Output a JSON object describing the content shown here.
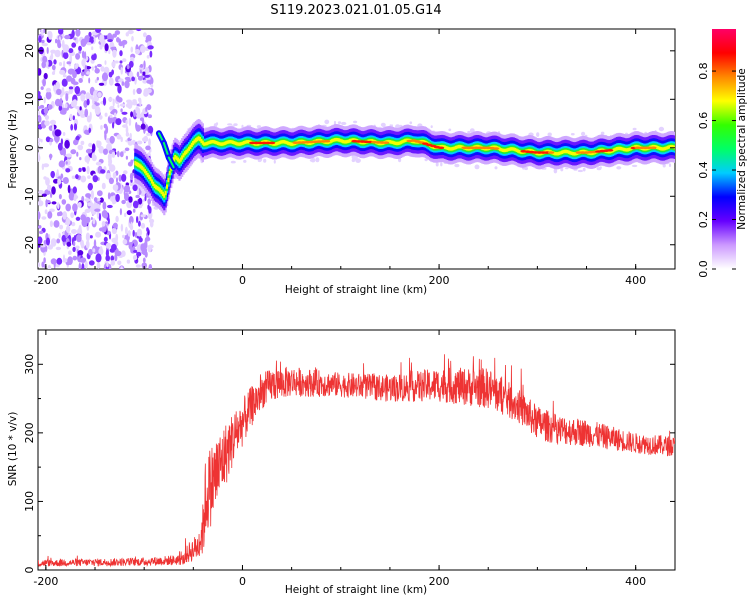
{
  "title": "S119.2023.021.01.05.G14",
  "chart_data": [
    {
      "type": "heatmap",
      "xlabel": "Height of straight line (km)",
      "ylabel": "Frequency (Hz)",
      "xlim": [
        -208,
        440
      ],
      "ylim": [
        -25,
        24.5
      ],
      "x_ticks": [
        -200,
        0,
        200,
        400
      ],
      "y_ticks": [
        -20,
        -10,
        0,
        10,
        20
      ],
      "colorbar": {
        "label": "Normalized spectral amplitude",
        "range": [
          0,
          0.97
        ],
        "ticks": [
          0.0,
          0.2,
          0.4,
          0.6,
          0.8
        ],
        "colormap": [
          "#ffffff",
          "#cc99ff",
          "#6600ff",
          "#0000ff",
          "#00ccff",
          "#00ff66",
          "#33ff00",
          "#ffff00",
          "#ff8800",
          "#ff0000",
          "#ff0066"
        ]
      },
      "noise_region_x": [
        -208,
        -100
      ],
      "ridge": {
        "x": [
          -110,
          -100,
          -95,
          -90,
          -85,
          -80,
          -75,
          -70,
          -65,
          -60,
          -55,
          -50,
          -45,
          -40,
          -30,
          0,
          50,
          100,
          150,
          175,
          200,
          250,
          300,
          350,
          400,
          440
        ],
        "freq": [
          -3,
          -5,
          -6,
          -8,
          -9,
          -10,
          -5,
          -2,
          -3,
          -1,
          0,
          1,
          2,
          1,
          1,
          1,
          1,
          1.5,
          1,
          1.5,
          0,
          0,
          -1,
          -1,
          0,
          0
        ]
      },
      "early_branch": {
        "x": [
          -85,
          -80,
          -75,
          -70
        ],
        "freq": [
          3,
          1,
          -2,
          -4
        ]
      }
    },
    {
      "type": "line",
      "xlabel": "Height of straight line (km)",
      "ylabel": "SNR (10 * v/v)",
      "xlim": [
        -208,
        440
      ],
      "ylim": [
        0,
        350
      ],
      "x_ticks": [
        -200,
        0,
        200,
        400
      ],
      "y_ticks": [
        0,
        100,
        200,
        300
      ],
      "color": "#ee3333",
      "envelope": {
        "x": [
          -208,
          -100,
          -60,
          -55,
          -45,
          -40,
          -38,
          -35,
          -30,
          -20,
          -10,
          0,
          10,
          20,
          30,
          50,
          100,
          150,
          200,
          250,
          280,
          300,
          320,
          350,
          400,
          440
        ],
        "mean": [
          10,
          12,
          15,
          25,
          35,
          60,
          100,
          115,
          130,
          160,
          190,
          215,
          240,
          260,
          270,
          275,
          270,
          265,
          270,
          265,
          240,
          215,
          205,
          200,
          185,
          180
        ],
        "spread": [
          5,
          6,
          8,
          15,
          20,
          40,
          60,
          60,
          60,
          50,
          40,
          35,
          30,
          25,
          25,
          22,
          18,
          20,
          25,
          30,
          25,
          25,
          22,
          20,
          15,
          15
        ]
      }
    }
  ]
}
